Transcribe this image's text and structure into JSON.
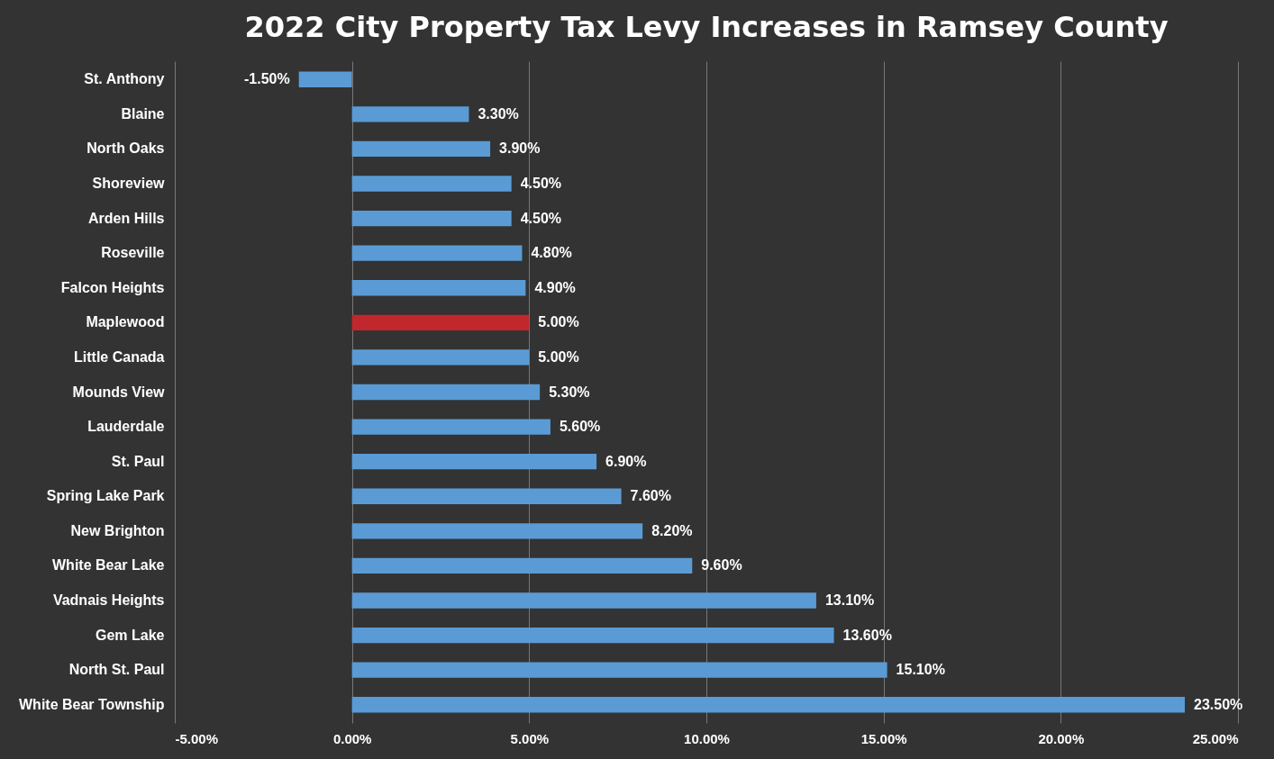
{
  "chart_data": {
    "type": "bar",
    "title": "2022 City Property Tax Levy Increases in Ramsey County",
    "orientation": "horizontal",
    "categories": [
      "St. Anthony",
      "Blaine",
      "North Oaks",
      "Shoreview",
      "Arden Hills",
      "Roseville",
      "Falcon Heights",
      "Maplewood",
      "Little Canada",
      "Mounds View",
      "Lauderdale",
      "St. Paul",
      "Spring Lake Park",
      "New Brighton",
      "White Bear Lake",
      "Vadnais Heights",
      "Gem Lake",
      "North St. Paul",
      "White Bear Township"
    ],
    "values": [
      -1.5,
      3.3,
      3.9,
      4.5,
      4.5,
      4.8,
      4.9,
      5.0,
      5.0,
      5.3,
      5.6,
      6.9,
      7.6,
      8.2,
      9.6,
      13.1,
      13.6,
      15.1,
      23.5
    ],
    "value_labels": [
      "-1.50%",
      "3.30%",
      "3.90%",
      "4.50%",
      "4.50%",
      "4.80%",
      "4.90%",
      "5.00%",
      "5.00%",
      "5.30%",
      "5.60%",
      "6.90%",
      "7.60%",
      "8.20%",
      "9.60%",
      "13.10%",
      "13.60%",
      "15.10%",
      "23.50%"
    ],
    "colors": [
      "#5b9bd5",
      "#5b9bd5",
      "#5b9bd5",
      "#5b9bd5",
      "#5b9bd5",
      "#5b9bd5",
      "#5b9bd5",
      "#c0282d",
      "#5b9bd5",
      "#5b9bd5",
      "#5b9bd5",
      "#5b9bd5",
      "#5b9bd5",
      "#5b9bd5",
      "#5b9bd5",
      "#5b9bd5",
      "#5b9bd5",
      "#5b9bd5",
      "#5b9bd5"
    ],
    "xlim": [
      -5,
      25
    ],
    "xticks": [
      {
        "value": -5,
        "label": "-5.00%"
      },
      {
        "value": 0,
        "label": "0.00%"
      },
      {
        "value": 5,
        "label": "5.00%"
      },
      {
        "value": 10,
        "label": "10.00%"
      },
      {
        "value": 15,
        "label": "15.00%"
      },
      {
        "value": 20,
        "label": "20.00%"
      },
      {
        "value": 25,
        "label": "25.00%"
      }
    ],
    "grid": "x"
  }
}
